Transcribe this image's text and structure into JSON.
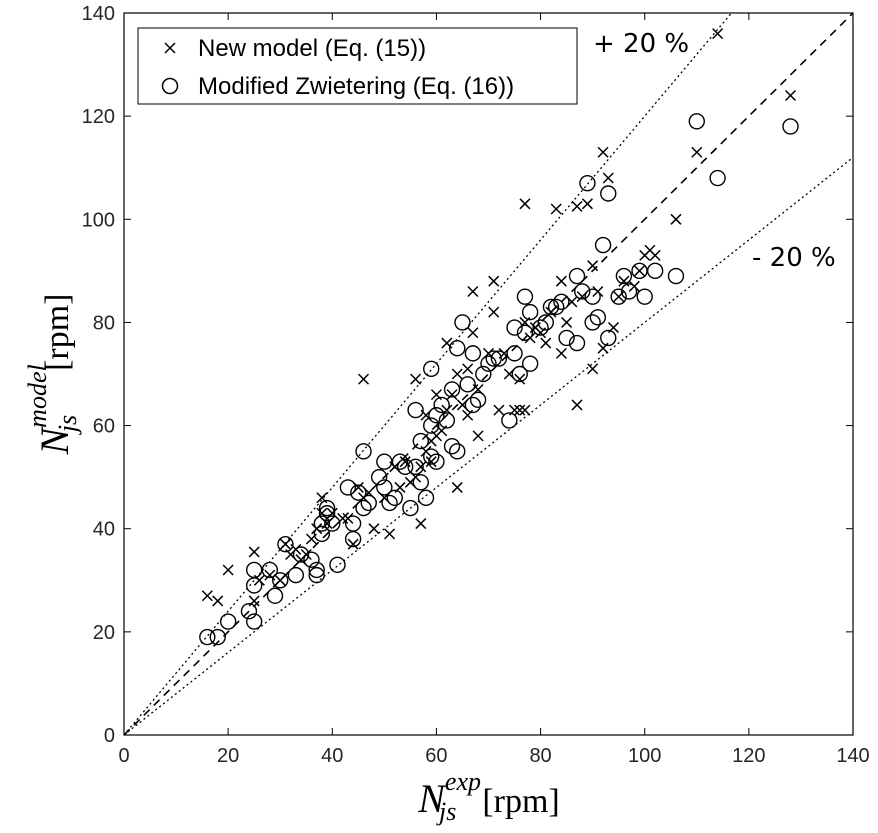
{
  "chart_data": {
    "type": "scatter",
    "xlim": [
      0,
      140
    ],
    "ylim": [
      0,
      140
    ],
    "xticks": [
      "0",
      "20",
      "40",
      "60",
      "80",
      "100",
      "120",
      "140"
    ],
    "yticks": [
      "0",
      "20",
      "40",
      "60",
      "80",
      "100",
      "120",
      "140"
    ],
    "xlabel": {
      "symbol": "N",
      "subscript": "js",
      "superscript": "exp",
      "unit": "[rpm]"
    },
    "ylabel": {
      "symbol": "N",
      "subscript": "js",
      "superscript": "model",
      "unit": "[rpm]"
    },
    "grid": false,
    "legend_position": "top-left",
    "annotations": {
      "upper": "+ 20 %",
      "lower": "- 20 %"
    },
    "reference_lines": [
      {
        "slope": 1.0,
        "style": "dashed"
      },
      {
        "slope": 1.2,
        "style": "dotted"
      },
      {
        "slope": 0.8,
        "style": "dotted"
      }
    ],
    "series": [
      {
        "name": "New model (Eq. (15))",
        "marker": "x",
        "points": [
          [
            16,
            27
          ],
          [
            18,
            26
          ],
          [
            20,
            32
          ],
          [
            25,
            35.5
          ],
          [
            25,
            26
          ],
          [
            26,
            30
          ],
          [
            28,
            31
          ],
          [
            30,
            30
          ],
          [
            31,
            37
          ],
          [
            32,
            35
          ],
          [
            33,
            36
          ],
          [
            34,
            34
          ],
          [
            35,
            35
          ],
          [
            36,
            38
          ],
          [
            37,
            40
          ],
          [
            38,
            46
          ],
          [
            38,
            43
          ],
          [
            39,
            41
          ],
          [
            40,
            43
          ],
          [
            42,
            42
          ],
          [
            43,
            42
          ],
          [
            44,
            37
          ],
          [
            45,
            48
          ],
          [
            46,
            46
          ],
          [
            46,
            69
          ],
          [
            47,
            47
          ],
          [
            48,
            40
          ],
          [
            50,
            46
          ],
          [
            51,
            39
          ],
          [
            52,
            52
          ],
          [
            53,
            48
          ],
          [
            54,
            53
          ],
          [
            55,
            49
          ],
          [
            56,
            50
          ],
          [
            56,
            69
          ],
          [
            57,
            41
          ],
          [
            57,
            52
          ],
          [
            58,
            55
          ],
          [
            58,
            62
          ],
          [
            59,
            53
          ],
          [
            59,
            57
          ],
          [
            60,
            58
          ],
          [
            60,
            66
          ],
          [
            61,
            59
          ],
          [
            62,
            63
          ],
          [
            62,
            76
          ],
          [
            63,
            66
          ],
          [
            64,
            48
          ],
          [
            64,
            70
          ],
          [
            65,
            64
          ],
          [
            66,
            62
          ],
          [
            66,
            71
          ],
          [
            67,
            86
          ],
          [
            67,
            78
          ],
          [
            68,
            58
          ],
          [
            68,
            67
          ],
          [
            70,
            74
          ],
          [
            71,
            88
          ],
          [
            71,
            82
          ],
          [
            72,
            63
          ],
          [
            73,
            74
          ],
          [
            74,
            70
          ],
          [
            75,
            63
          ],
          [
            76,
            69
          ],
          [
            76,
            63
          ],
          [
            77,
            63
          ],
          [
            77,
            103
          ],
          [
            77,
            80
          ],
          [
            78,
            77
          ],
          [
            79,
            79
          ],
          [
            80,
            78
          ],
          [
            81,
            76
          ],
          [
            82,
            82
          ],
          [
            83,
            102
          ],
          [
            84,
            74
          ],
          [
            84,
            88
          ],
          [
            85,
            80
          ],
          [
            86,
            84
          ],
          [
            87,
            64
          ],
          [
            87,
            102.5
          ],
          [
            88,
            85
          ],
          [
            89,
            103
          ],
          [
            90,
            91
          ],
          [
            90,
            71
          ],
          [
            91,
            86
          ],
          [
            92,
            113
          ],
          [
            92,
            75
          ],
          [
            93,
            108
          ],
          [
            94,
            79
          ],
          [
            95,
            85
          ],
          [
            96,
            88
          ],
          [
            98,
            87
          ],
          [
            99,
            90
          ],
          [
            100,
            93
          ],
          [
            101,
            94
          ],
          [
            102,
            93
          ],
          [
            106,
            100
          ],
          [
            110,
            113
          ],
          [
            114,
            136
          ],
          [
            128,
            124
          ]
        ]
      },
      {
        "name": "Modified Zwietering (Eq. (16))",
        "marker": "circle",
        "points": [
          [
            16,
            19
          ],
          [
            18,
            19
          ],
          [
            20,
            22
          ],
          [
            24,
            24
          ],
          [
            25,
            22
          ],
          [
            25,
            29
          ],
          [
            25,
            32
          ],
          [
            28,
            32
          ],
          [
            29,
            27
          ],
          [
            30,
            30
          ],
          [
            31,
            37
          ],
          [
            33,
            31
          ],
          [
            34,
            35
          ],
          [
            36,
            34
          ],
          [
            37,
            31
          ],
          [
            37,
            32
          ],
          [
            38,
            39
          ],
          [
            38,
            41
          ],
          [
            39,
            43
          ],
          [
            39,
            44
          ],
          [
            40,
            41
          ],
          [
            41,
            33
          ],
          [
            43,
            48
          ],
          [
            44,
            38
          ],
          [
            44,
            41
          ],
          [
            45,
            47
          ],
          [
            46,
            44
          ],
          [
            46,
            55
          ],
          [
            47,
            45
          ],
          [
            49,
            50
          ],
          [
            50,
            48
          ],
          [
            50,
            53
          ],
          [
            51,
            45
          ],
          [
            52,
            46
          ],
          [
            53,
            53
          ],
          [
            54,
            52
          ],
          [
            55,
            44
          ],
          [
            56,
            63
          ],
          [
            56,
            52
          ],
          [
            57,
            49
          ],
          [
            57,
            57
          ],
          [
            58,
            46
          ],
          [
            59,
            54
          ],
          [
            59,
            60
          ],
          [
            59,
            71
          ],
          [
            60,
            53
          ],
          [
            60,
            62
          ],
          [
            61,
            64
          ],
          [
            62,
            61
          ],
          [
            63,
            56
          ],
          [
            63,
            67
          ],
          [
            64,
            55
          ],
          [
            64,
            75
          ],
          [
            65,
            80
          ],
          [
            66,
            68
          ],
          [
            67,
            64
          ],
          [
            67,
            74
          ],
          [
            68,
            65
          ],
          [
            69,
            70
          ],
          [
            70,
            72
          ],
          [
            71,
            73
          ],
          [
            72,
            73
          ],
          [
            74,
            61
          ],
          [
            75,
            74
          ],
          [
            75,
            79
          ],
          [
            76,
            70
          ],
          [
            77,
            85
          ],
          [
            77,
            78
          ],
          [
            78,
            72
          ],
          [
            78,
            82
          ],
          [
            80,
            79
          ],
          [
            81,
            80
          ],
          [
            82,
            83
          ],
          [
            83,
            83
          ],
          [
            84,
            84
          ],
          [
            85,
            77
          ],
          [
            87,
            76
          ],
          [
            87,
            89
          ],
          [
            88,
            86
          ],
          [
            89,
            107
          ],
          [
            90,
            80
          ],
          [
            90,
            85
          ],
          [
            91,
            81
          ],
          [
            92,
            95
          ],
          [
            93,
            105
          ],
          [
            93,
            77
          ],
          [
            95,
            85
          ],
          [
            96,
            89
          ],
          [
            97,
            86
          ],
          [
            99,
            90
          ],
          [
            100,
            85
          ],
          [
            102,
            90
          ],
          [
            106,
            89
          ],
          [
            110,
            119
          ],
          [
            114,
            108
          ],
          [
            128,
            118
          ]
        ]
      }
    ]
  }
}
